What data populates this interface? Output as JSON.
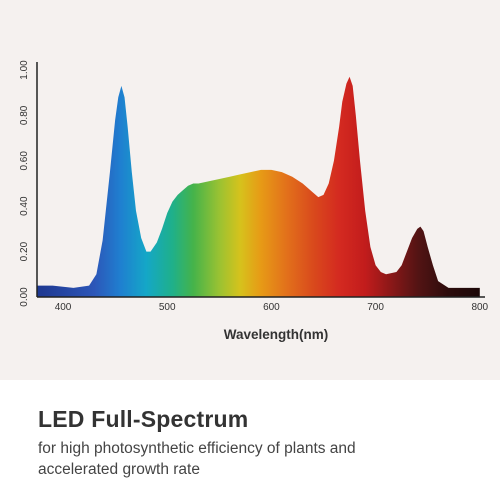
{
  "caption": {
    "title": "LED Full-Spectrum",
    "subtitle": "for high photosynthetic efficiency of plants and accelerated growth rate"
  },
  "chart_data": {
    "type": "area",
    "title": "",
    "xlabel": "Wavelength(nm)",
    "ylabel": "",
    "xlim": [
      375,
      805
    ],
    "ylim": [
      0,
      1.0
    ],
    "x_ticks": [
      400,
      500,
      600,
      700,
      800
    ],
    "y_ticks": [
      0,
      0.2,
      0.4,
      0.6,
      0.8,
      1.0
    ],
    "x_tick_labels": [
      "400",
      "500",
      "600",
      "700",
      "800"
    ],
    "y_tick_labels": [
      "0.00",
      "0.20",
      "0.40",
      "0.60",
      "0.80",
      "1.00"
    ],
    "grid": false,
    "fill": "visible-spectrum gradient",
    "series": [
      {
        "x": [
          375,
          390,
          410,
          425,
          432,
          438,
          445,
          450,
          453,
          456,
          459,
          462,
          466,
          470,
          475,
          480,
          484,
          490,
          495,
          500,
          505,
          510,
          515,
          520,
          525,
          530,
          540,
          550,
          560,
          570,
          580,
          590,
          600,
          610,
          620,
          630,
          640,
          645,
          650,
          655,
          660,
          665,
          668,
          672,
          675,
          678,
          681,
          685,
          690,
          695,
          700,
          705,
          710,
          720,
          725,
          730,
          735,
          740,
          743,
          746,
          750,
          755,
          760,
          770,
          780,
          790,
          800
        ],
        "y": [
          0.05,
          0.05,
          0.04,
          0.05,
          0.1,
          0.25,
          0.55,
          0.78,
          0.88,
          0.93,
          0.88,
          0.75,
          0.55,
          0.38,
          0.26,
          0.2,
          0.2,
          0.24,
          0.3,
          0.37,
          0.42,
          0.45,
          0.47,
          0.49,
          0.5,
          0.5,
          0.51,
          0.52,
          0.53,
          0.54,
          0.55,
          0.56,
          0.56,
          0.55,
          0.53,
          0.5,
          0.46,
          0.44,
          0.45,
          0.5,
          0.6,
          0.75,
          0.86,
          0.94,
          0.97,
          0.93,
          0.8,
          0.6,
          0.38,
          0.22,
          0.14,
          0.11,
          0.1,
          0.11,
          0.14,
          0.2,
          0.26,
          0.3,
          0.31,
          0.29,
          0.22,
          0.14,
          0.07,
          0.04,
          0.04,
          0.04,
          0.04
        ]
      }
    ]
  }
}
